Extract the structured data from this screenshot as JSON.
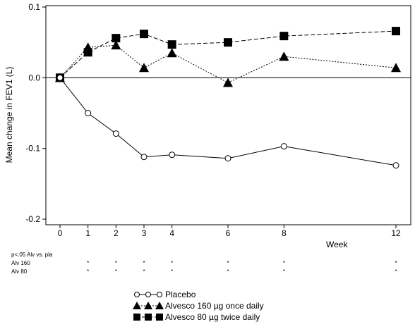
{
  "chart_data": {
    "type": "line",
    "title": "",
    "xlabel": "Week",
    "ylabel": "Mean change in FEV1 (L)",
    "ylim": [
      -0.2,
      0.1
    ],
    "y_ticks": [
      "0.1",
      "0.0",
      "-0.1",
      "-0.2"
    ],
    "x_ticks": [
      "0",
      "1",
      "2",
      "3",
      "4",
      "6",
      "8",
      "12"
    ],
    "zero_line": true,
    "grid": false,
    "legend_position": "bottom-center",
    "series": [
      {
        "name": "Placebo",
        "marker": "open-circle",
        "line_style": "solid",
        "x": [
          0,
          1,
          2,
          3,
          4,
          6,
          8,
          12
        ],
        "values": [
          0.0,
          -0.05,
          -0.079,
          -0.112,
          -0.109,
          -0.114,
          -0.097,
          -0.124
        ]
      },
      {
        "name": "Alvesco 160 µg once daily",
        "marker": "filled-triangle",
        "line_style": "dotted",
        "x": [
          0,
          1,
          2,
          3,
          4,
          6,
          8,
          12
        ],
        "values": [
          0.0,
          0.043,
          0.046,
          0.014,
          0.035,
          -0.007,
          0.03,
          0.014
        ]
      },
      {
        "name": "Alvesco 80 µg twice daily",
        "marker": "filled-square",
        "line_style": "dashed",
        "x": [
          0,
          1,
          2,
          3,
          4,
          6,
          8,
          12
        ],
        "values": [
          0.0,
          0.036,
          0.056,
          0.062,
          0.047,
          0.05,
          0.059,
          0.066
        ]
      }
    ],
    "significance": {
      "header": "p<.05   Alv vs.  pla",
      "rows": [
        {
          "label": "Alv 160",
          "marks": [
            1,
            2,
            3,
            4,
            6,
            8,
            12
          ],
          "symbol": "*"
        },
        {
          "label": "Alv 80",
          "marks": [
            1,
            2,
            3,
            4,
            6,
            8,
            12
          ],
          "symbol": "*"
        }
      ]
    }
  }
}
